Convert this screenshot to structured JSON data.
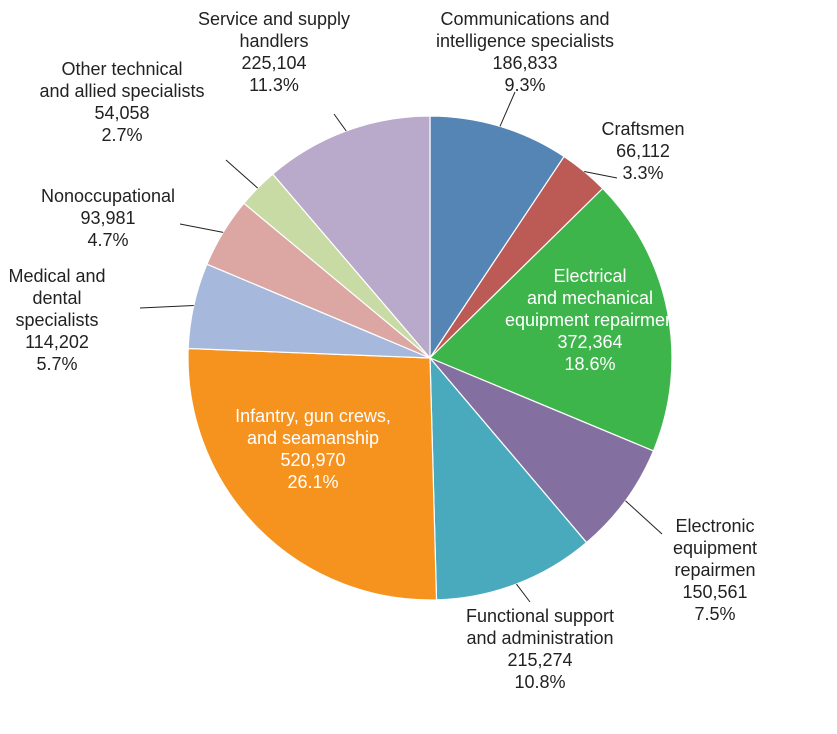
{
  "chart_data": {
    "type": "pie",
    "categories": [
      "Communications and\nintelligence specialists",
      "Craftsmen",
      "Electrical\nand mechanical\nequipment repairmen",
      "Electronic\nequipment repairmen",
      "Functional support\nand administration",
      "Infantry, gun crews,\nand seamanship",
      "Medical and\ndental\nspecialists",
      "Nonoccupational",
      "Other technical\nand allied specialists",
      "Service and supply\nhandlers"
    ],
    "values": [
      186833,
      66112,
      372364,
      150561,
      215274,
      520970,
      114202,
      93981,
      54058,
      225104
    ],
    "value_labels": [
      "186,833",
      "66,112",
      "372,364",
      "150,561",
      "215,274",
      "520,970",
      "114,202",
      "93,981",
      "54,058",
      "225,104"
    ],
    "percents": [
      9.3,
      3.3,
      18.6,
      7.5,
      10.8,
      26.1,
      5.7,
      4.7,
      2.7,
      11.3
    ],
    "percent_labels": [
      "9.3%",
      "3.3%",
      "18.6%",
      "7.5%",
      "10.8%",
      "26.1%",
      "5.7%",
      "4.7%",
      "2.7%",
      "11.3%"
    ],
    "colors": [
      "#5585b5",
      "#bc5b55",
      "#3db54a",
      "#8470a0",
      "#4aaabd",
      "#f6931f",
      "#a6b9dc",
      "#dca6a2",
      "#c8dba5",
      "#b9a9cb"
    ]
  }
}
